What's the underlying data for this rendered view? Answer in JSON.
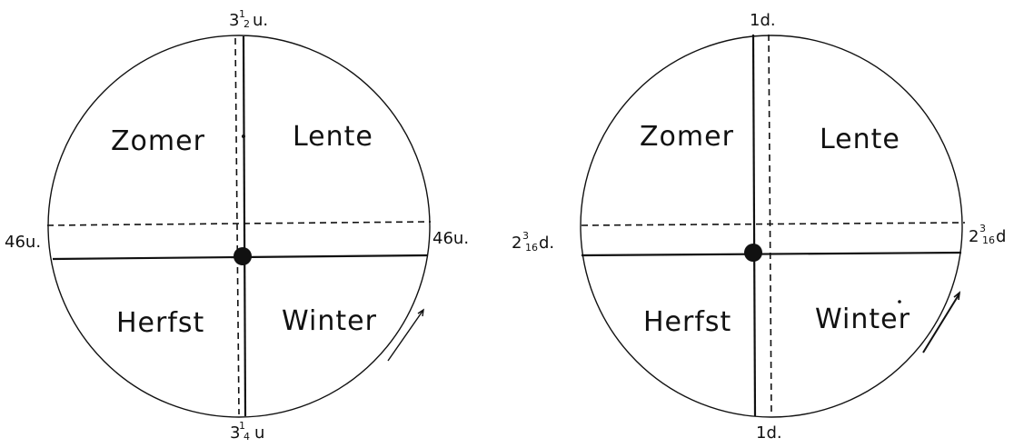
{
  "left_diagram": {
    "seasons": {
      "top_left": "Zomer",
      "top_right": "Lente",
      "bottom_left": "Herfst",
      "bottom_right": "Winter"
    },
    "top_label": {
      "whole": "3",
      "num": "1",
      "den": "2",
      "unit": "u."
    },
    "bottom_label": {
      "whole": "3",
      "num": "1",
      "den": "4",
      "unit": "u"
    },
    "left_label": "46u.",
    "right_label": "46u."
  },
  "right_diagram": {
    "seasons": {
      "top_left": "Zomer",
      "top_right": "Lente",
      "bottom_left": "Herfst",
      "bottom_right": "Winter"
    },
    "top_label": "1d.",
    "bottom_label": "1d.",
    "left_label": {
      "whole": "2",
      "num": "3",
      "den": "16",
      "unit": "d."
    },
    "right_label": {
      "whole": "2",
      "num": "3",
      "den": "16",
      "unit": "d"
    }
  }
}
